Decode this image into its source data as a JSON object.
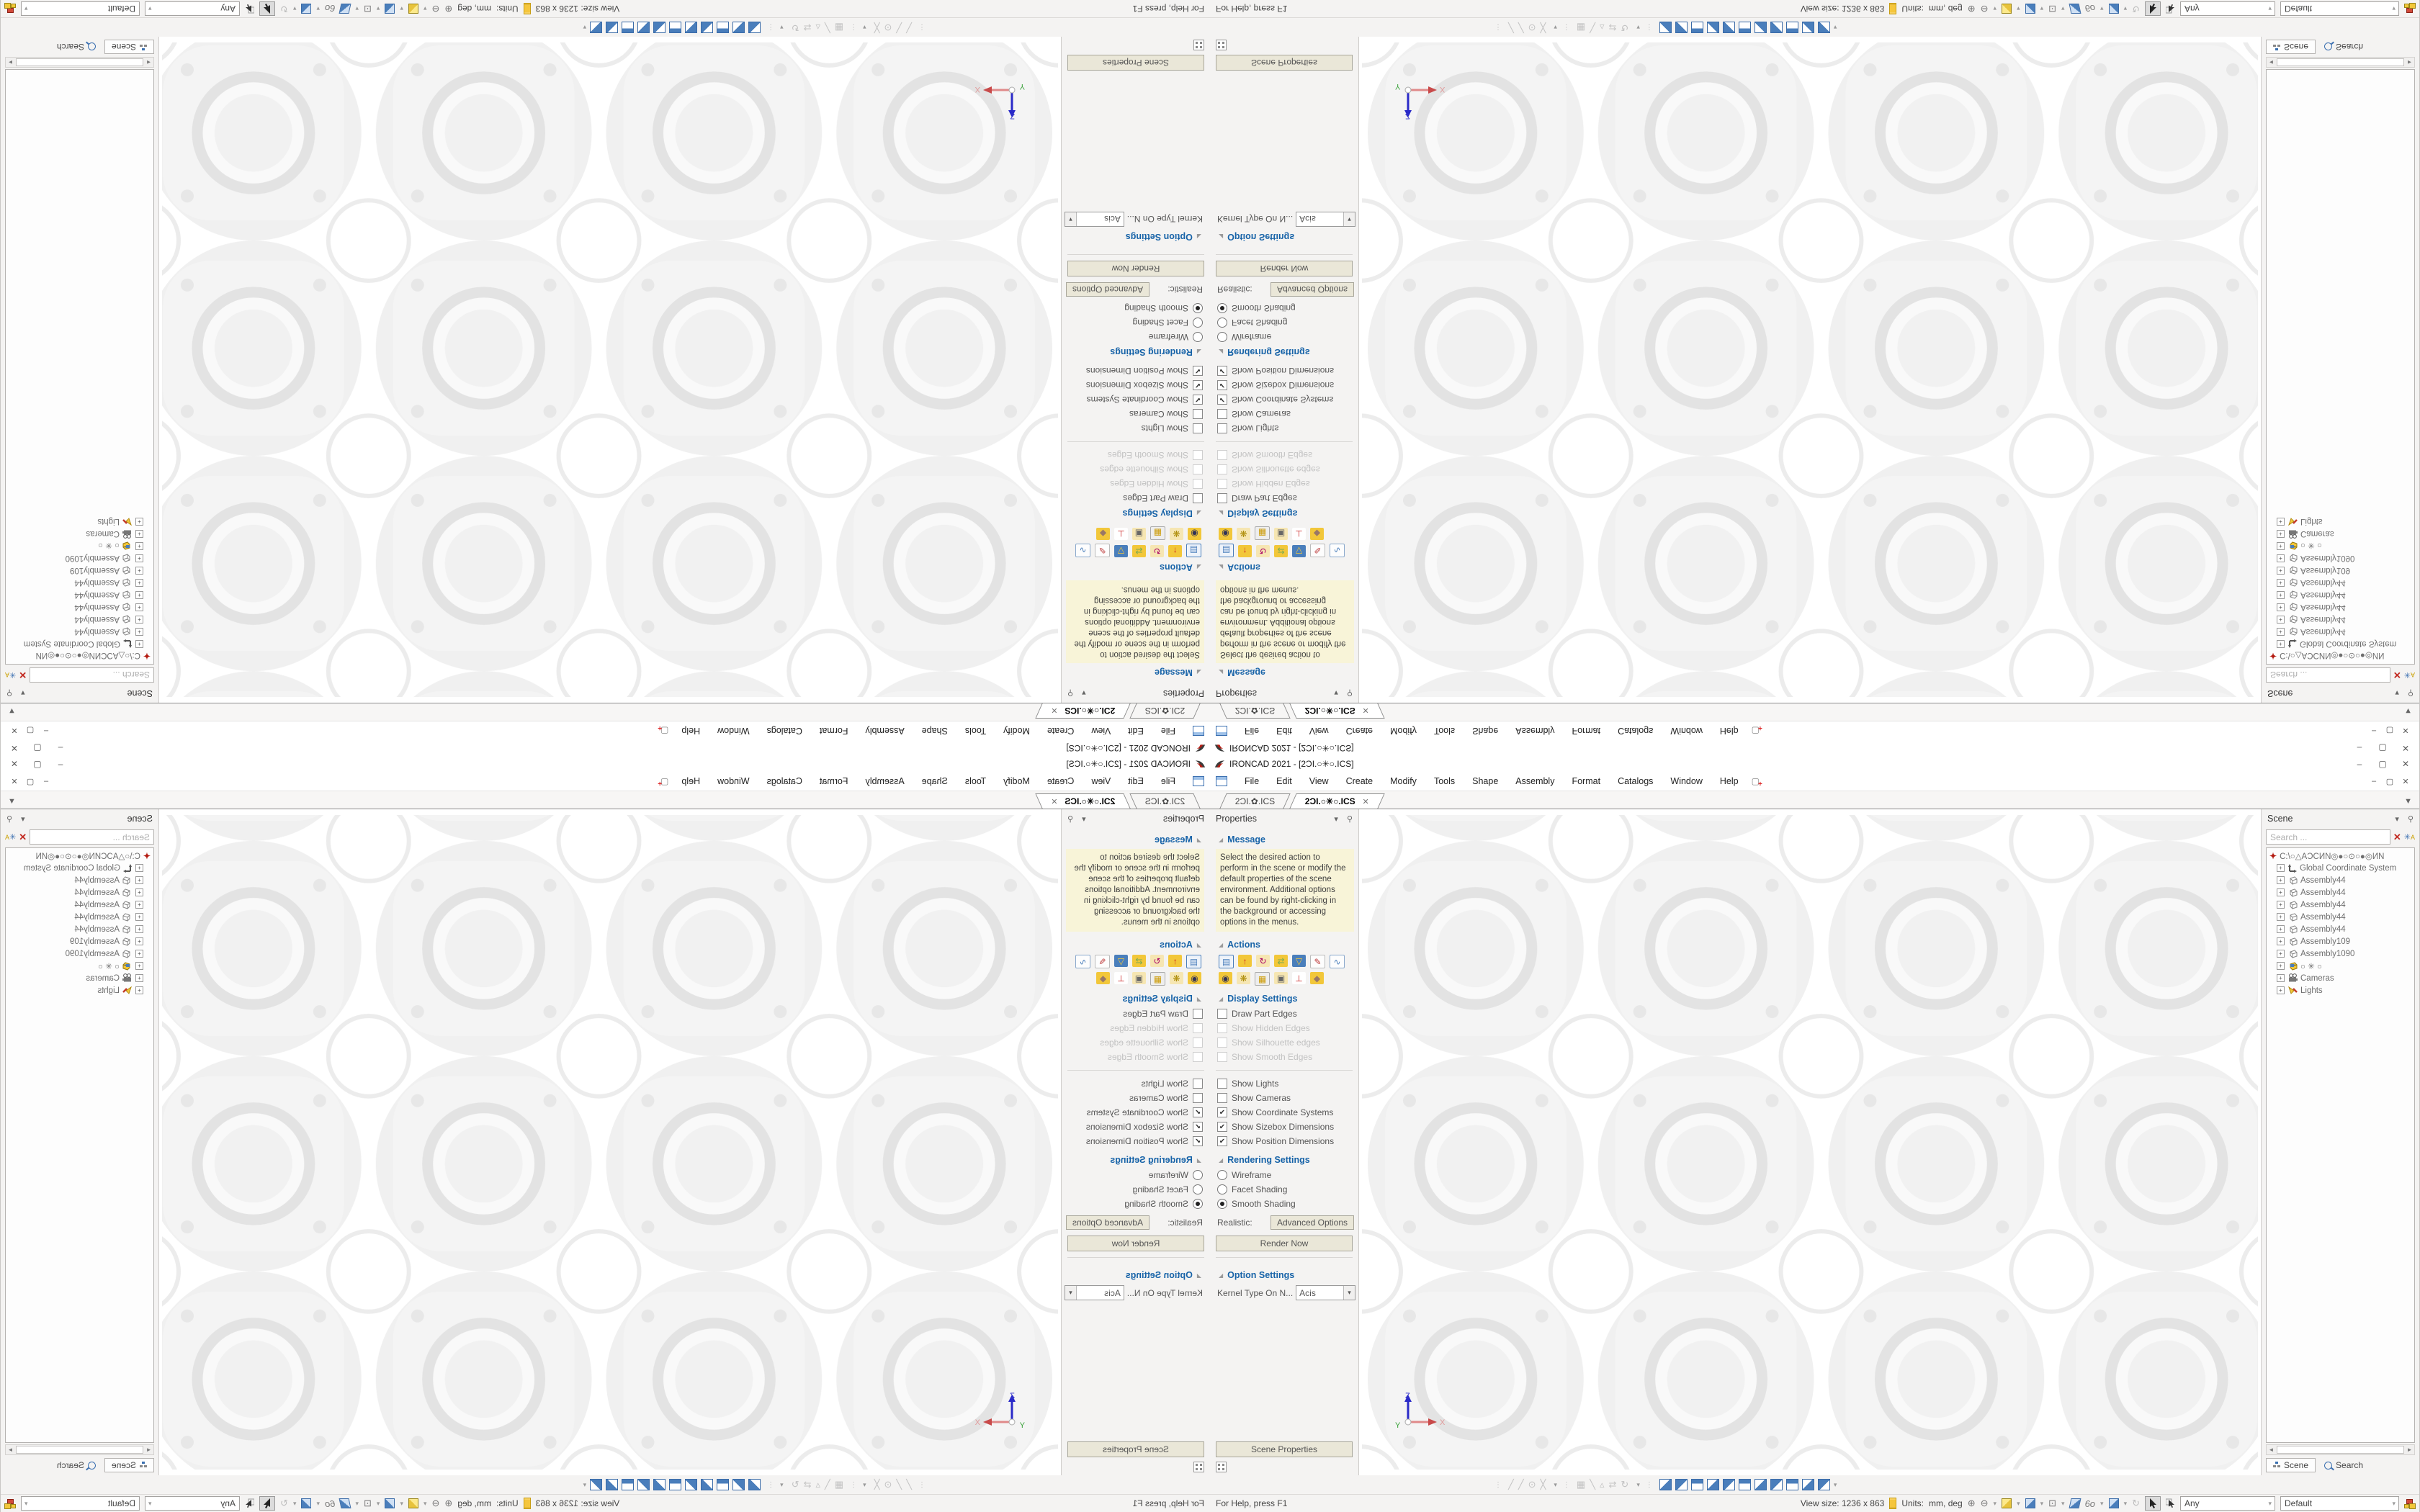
{
  "window": {
    "title": "IRONCAD 2021 - [2ƆI.○✳○.ICS]",
    "controls": {
      "minimize": "–",
      "restore": "▢",
      "close": "✕"
    }
  },
  "icons": {
    "dropdown": "▾",
    "overflow": "▼",
    "pin": "⚲",
    "close": "✕",
    "scroll_left": "◄",
    "scroll_right": "►",
    "expander": "+",
    "collapse_triangle": "◢"
  },
  "menu_bar": {
    "items": [
      "File",
      "Edit",
      "View",
      "Create",
      "Modify",
      "Tools",
      "Shape",
      "Assembly",
      "Format",
      "Catalogs",
      "Window",
      "Help"
    ]
  },
  "document_tabs": {
    "tabs": [
      {
        "label": "2ƆI.✿.ICS",
        "active": false
      },
      {
        "label": "2ƆI.○✳○.ICS",
        "active": true
      }
    ]
  },
  "properties_panel": {
    "title": "Properties",
    "message": {
      "header": "Message",
      "text": "Select the desired action to perform in the scene or modify the default properties of the scene environment. Additional options can be found by right-clicking in the background or accessing options in the menus."
    },
    "actions": {
      "header": "Actions"
    },
    "display": {
      "header": "Display Settings",
      "checkboxes": [
        {
          "label": "Draw Part Edges",
          "checked": false,
          "enabled": true
        },
        {
          "label": "Show Hidden Edges",
          "checked": false,
          "enabled": false
        },
        {
          "label": "Show Silhouette edges",
          "checked": false,
          "enabled": false
        },
        {
          "label": "Show Smooth Edges",
          "checked": false,
          "enabled": false
        },
        {
          "label": "Show Lights",
          "checked": false,
          "enabled": true
        },
        {
          "label": "Show Cameras",
          "checked": false,
          "enabled": true
        },
        {
          "label": "Show Coordinate Systems",
          "checked": true,
          "enabled": true
        },
        {
          "label": "Show Sizebox Dimensions",
          "checked": true,
          "enabled": true
        },
        {
          "label": "Show Position Dimensions",
          "checked": true,
          "enabled": true
        }
      ]
    },
    "rendering": {
      "header": "Rendering Settings",
      "radios": [
        {
          "label": "Wireframe",
          "selected": false
        },
        {
          "label": "Facet Shading",
          "selected": false
        },
        {
          "label": "Smooth Shading",
          "selected": true
        }
      ],
      "realistic_label": "Realistic:",
      "advanced_button": "Advanced Options",
      "render_button": "Render Now"
    },
    "options": {
      "header": "Option Settings",
      "kernel_label": "Kernel Type On N...",
      "kernel_value": "Acis"
    },
    "scene_properties_button": "Scene Properties"
  },
  "scene_panel": {
    "title": "Scene",
    "search_placeholder": "Search ...",
    "tree": [
      {
        "icon": "ironcad-file",
        "label": "C:\\○△AƆCИN◎●○⊙○●◎ИN"
      },
      {
        "icon": "coordinate-system",
        "label": "Global Coordinate System"
      },
      {
        "icon": "assembly",
        "label": "Assembly44"
      },
      {
        "icon": "assembly",
        "label": "Assembly44"
      },
      {
        "icon": "assembly",
        "label": "Assembly44"
      },
      {
        "icon": "assembly",
        "label": "Assembly44"
      },
      {
        "icon": "assembly",
        "label": "Assembly44"
      },
      {
        "icon": "assembly",
        "label": "Assembly109"
      },
      {
        "icon": "assembly",
        "label": "Assembly1090"
      },
      {
        "icon": "part",
        "label": "○ ✳ ○"
      },
      {
        "icon": "cameras",
        "label": "Cameras"
      },
      {
        "icon": "lights",
        "label": "Lights"
      }
    ],
    "bottom_tabs": [
      {
        "label": "Scene",
        "active": true
      },
      {
        "label": "Search",
        "active": false
      }
    ]
  },
  "viewport": {
    "triad": {
      "x": "X",
      "y": "Y",
      "z": "Z"
    }
  },
  "status_bar": {
    "help_text": "For Help, press F1",
    "view_size": "View size: 1236 x 863",
    "units_label": "Units:",
    "units_value": "mm, deg",
    "selection_filter": "Any",
    "render_style": "Default"
  }
}
